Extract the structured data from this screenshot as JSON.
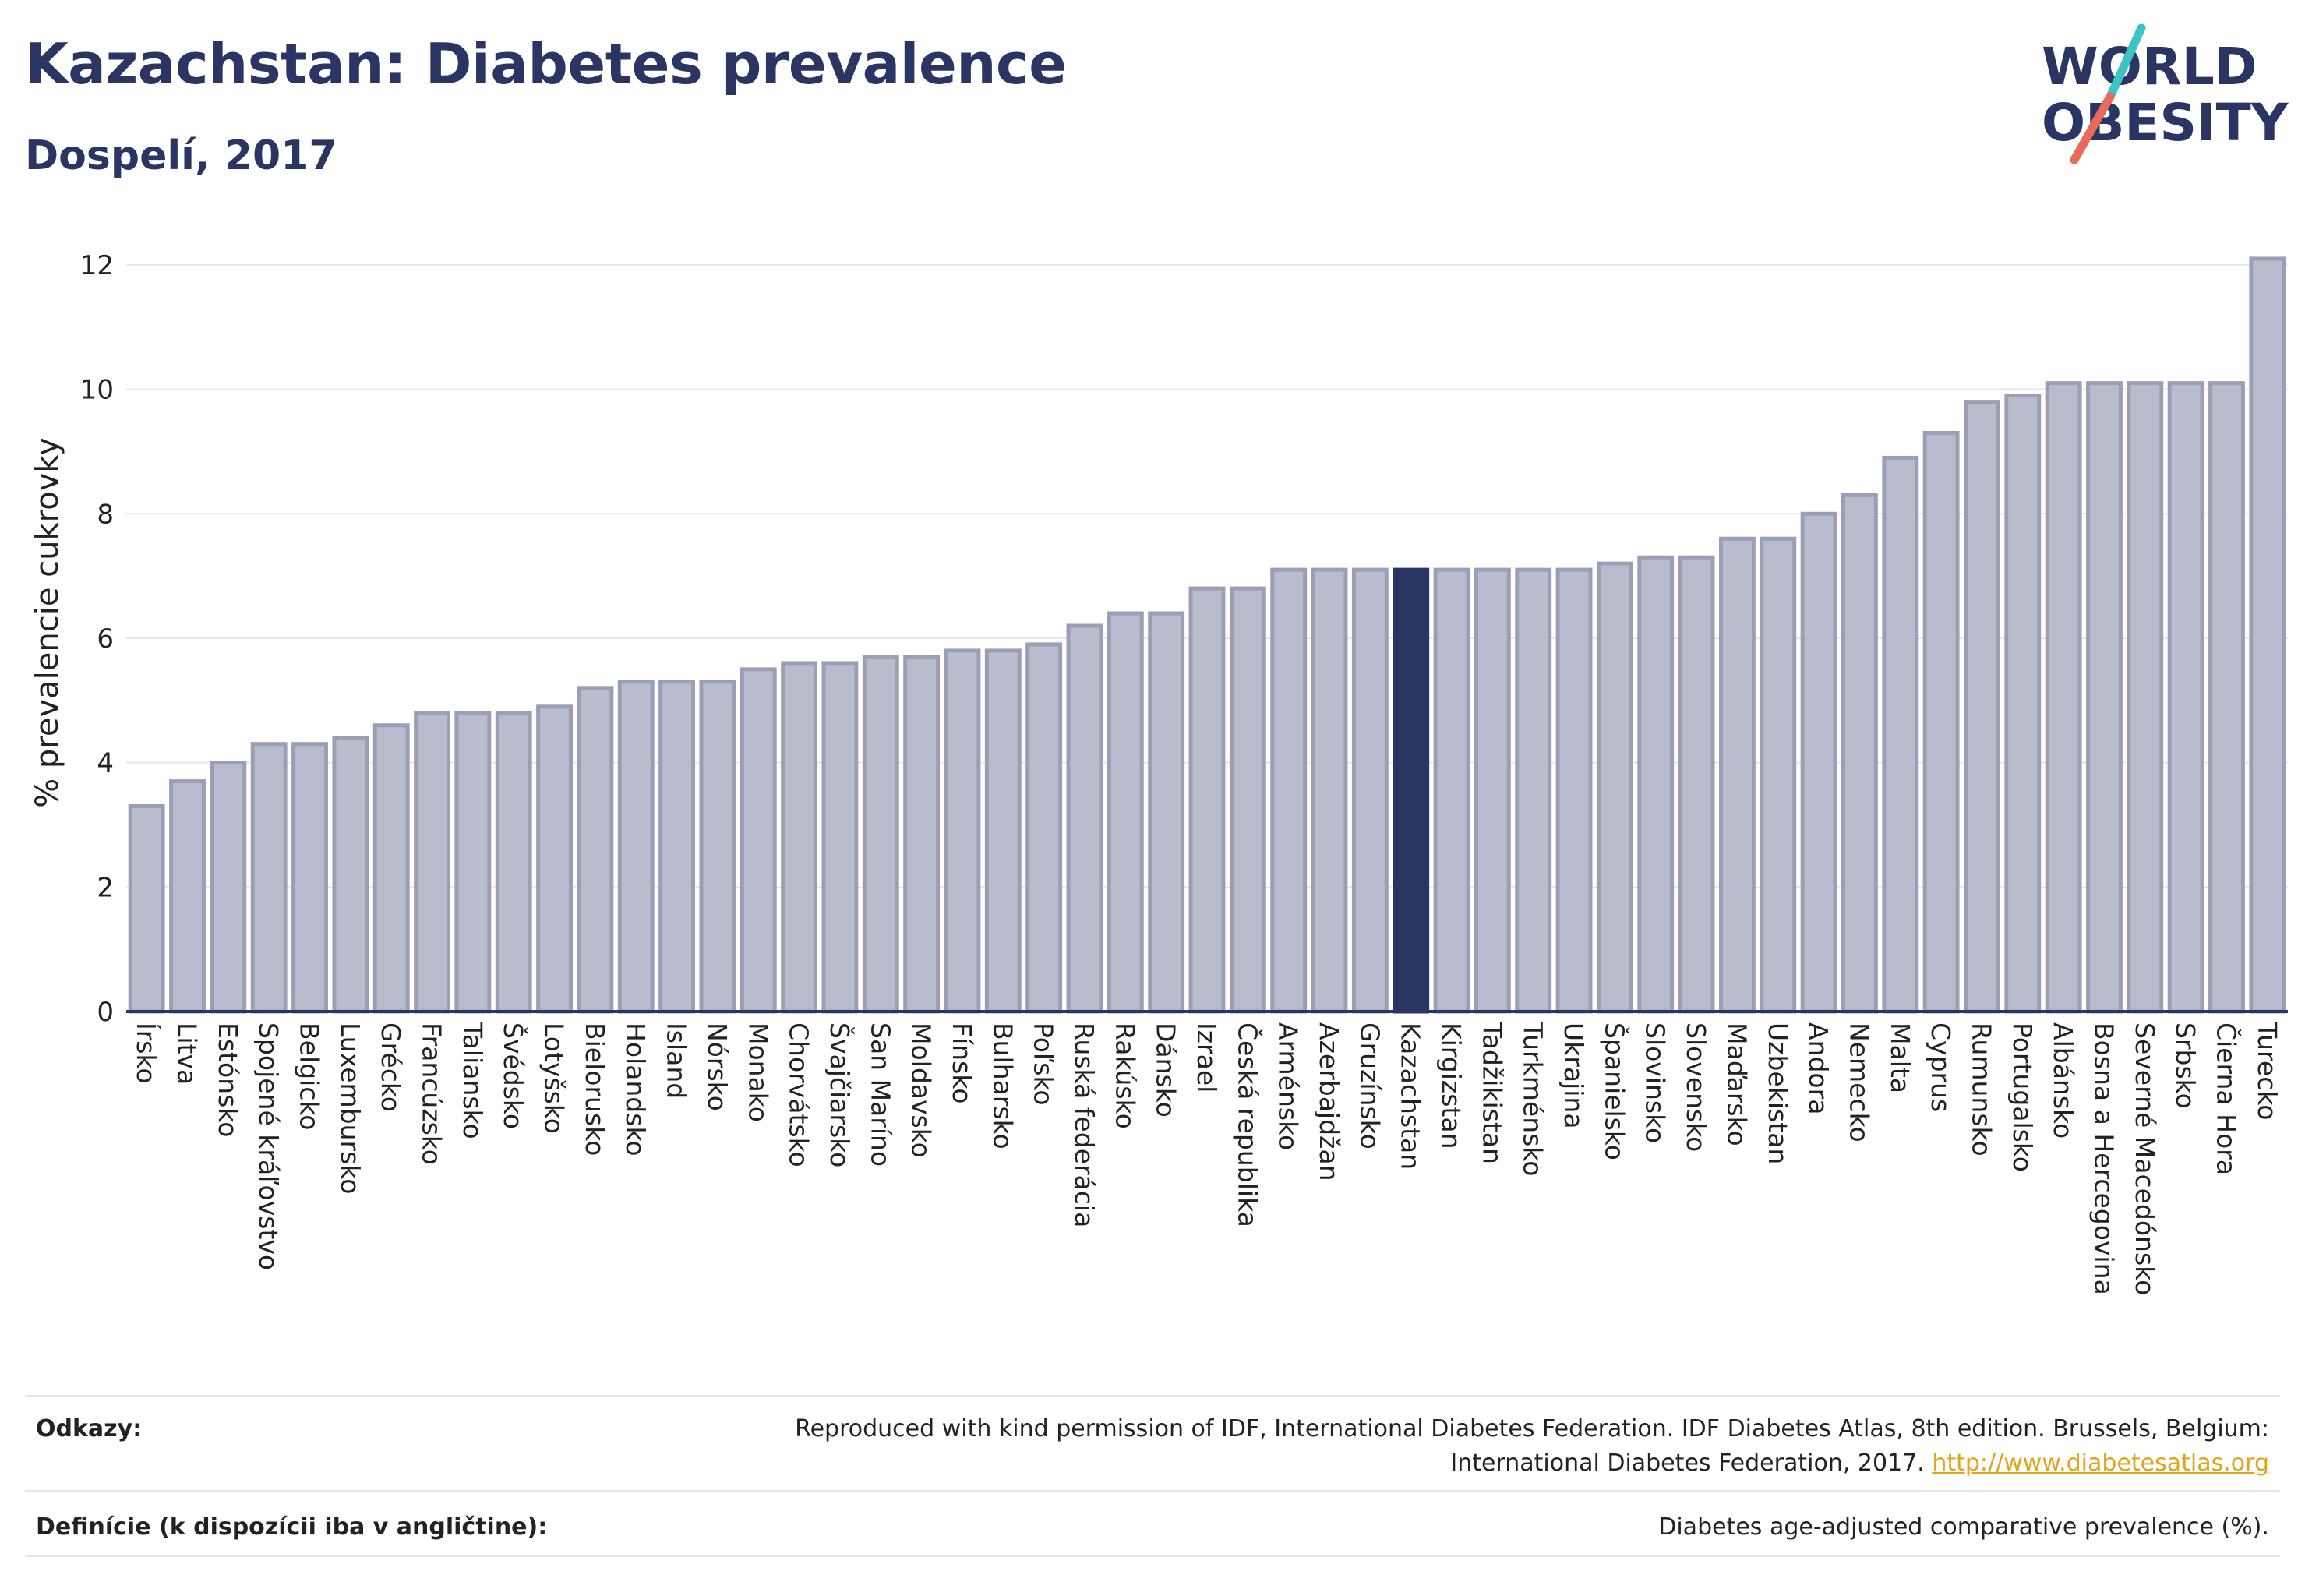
{
  "header": {
    "title": "Kazachstan: Diabetes prevalence",
    "subtitle": "Dospelí, 2017"
  },
  "logo": {
    "line1": "WORLD",
    "line2": "OBESITY",
    "colors": {
      "text": "#2b3563",
      "slash_top": "#3cc4c4",
      "slash_bottom": "#e86a5c"
    }
  },
  "chart_data": {
    "type": "bar",
    "ylabel": "% prevalencie cukrovky",
    "ylim": [
      0,
      12.5
    ],
    "yticks": [
      0,
      2,
      4,
      6,
      8,
      10,
      12
    ],
    "grid": true,
    "highlight": "Kazachstan",
    "colors": {
      "bar": "#b9bccc",
      "bar_stroke": "#9a9fb5",
      "highlight": "#2b3563"
    },
    "categories": [
      "Írsko",
      "Litva",
      "Estónsko",
      "Spojené kráľovstvo",
      "Belgicko",
      "Luxembursko",
      "Grécko",
      "Francúzsko",
      "Taliansko",
      "Švédsko",
      "Lotyšsko",
      "Bielorusko",
      "Holandsko",
      "Island",
      "Nórsko",
      "Monako",
      "Chorvátsko",
      "Švajčiarsko",
      "San Maríno",
      "Moldavsko",
      "Fínsko",
      "Bulharsko",
      "Poľsko",
      "Ruská federácia",
      "Rakúsko",
      "Dánsko",
      "Izrael",
      "Česká republika",
      "Arménsko",
      "Azerbajdžan",
      "Gruzínsko",
      "Kazachstan",
      "Kirgizstan",
      "Tadžikistan",
      "Turkménsko",
      "Ukrajina",
      "Španielsko",
      "Slovinsko",
      "Slovensko",
      "Maďarsko",
      "Uzbekistan",
      "Andora",
      "Nemecko",
      "Malta",
      "Cyprus",
      "Rumunsko",
      "Portugalsko",
      "Albánsko",
      "Bosna a Hercegovina",
      "Severné Macedónsko",
      "Srbsko",
      "Čierna Hora",
      "Turecko"
    ],
    "values": [
      3.3,
      3.7,
      4.0,
      4.3,
      4.3,
      4.4,
      4.6,
      4.8,
      4.8,
      4.8,
      4.9,
      5.2,
      5.3,
      5.3,
      5.3,
      5.5,
      5.6,
      5.6,
      5.7,
      5.7,
      5.8,
      5.8,
      5.9,
      6.2,
      6.4,
      6.4,
      6.8,
      6.8,
      7.1,
      7.1,
      7.1,
      7.1,
      7.1,
      7.1,
      7.1,
      7.1,
      7.2,
      7.3,
      7.3,
      7.6,
      7.6,
      8.0,
      8.3,
      8.9,
      9.3,
      9.8,
      9.9,
      10.1,
      10.1,
      10.1,
      10.1,
      10.1,
      12.1
    ]
  },
  "footer": {
    "refs_label": "Odkazy:",
    "refs_line1": "Reproduced with kind permission of IDF, International Diabetes Federation. IDF Diabetes Atlas, 8th edition. Brussels, Belgium:",
    "refs_line2": "International Diabetes Federation, 2017.",
    "refs_link": "http://www.diabetesatlas.org",
    "def_label": "Definície (k dispozícii iba v angličtine):",
    "def_value": "Diabetes age-adjusted comparative prevalence (%)."
  }
}
